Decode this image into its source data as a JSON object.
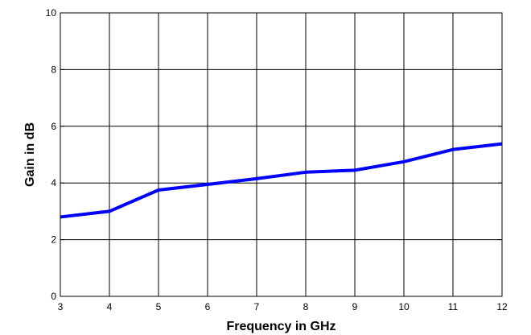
{
  "chart_data": {
    "type": "line",
    "title": "",
    "xlabel": "Frequency in GHz",
    "ylabel": "Gain in dB",
    "xlim": [
      3,
      12
    ],
    "ylim": [
      0,
      10
    ],
    "x_ticks": [
      3,
      4,
      5,
      6,
      7,
      8,
      9,
      10,
      11,
      12
    ],
    "y_ticks": [
      0,
      2,
      4,
      6,
      8,
      10
    ],
    "x_tick_labels": [
      "3",
      "4",
      "5",
      "6",
      "7",
      "8",
      "9",
      "10",
      "11",
      "12"
    ],
    "y_tick_labels": [
      "0",
      "2",
      "4",
      "6",
      "8",
      "10"
    ],
    "grid": true,
    "legend": "none",
    "series": [
      {
        "color": "#0000ff",
        "x": [
          3,
          4,
          5,
          6,
          7,
          8,
          9,
          10,
          11,
          12
        ],
        "y": [
          2.8,
          3.0,
          3.75,
          3.95,
          4.15,
          4.38,
          4.45,
          4.75,
          5.18,
          5.38
        ]
      }
    ]
  }
}
